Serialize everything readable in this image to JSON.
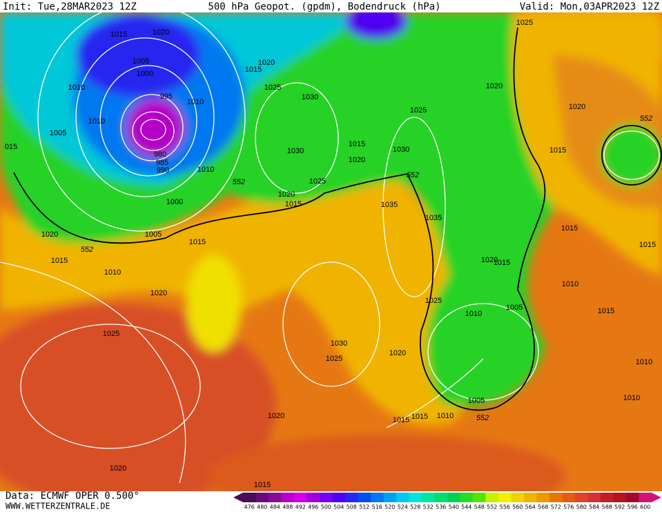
{
  "header": {
    "init": "Init: Tue,28MAR2023 12Z",
    "title": "500 hPa Geopot. (gpdm), Bodendruck (hPa)",
    "valid": "Valid: Mon,03APR2023 12Z"
  },
  "map": {
    "isobar_labels": [
      1015,
      1020,
      1005,
      1000,
      1010,
      995,
      1010,
      1010,
      1005,
      980,
      985,
      990,
      1010,
      1000,
      1005,
      1020,
      1015,
      1010,
      1015,
      1020,
      1025,
      1020,
      1020,
      1015,
      1015,
      1020,
      1025,
      1030,
      1030,
      1025,
      1020,
      1015,
      1015,
      1020,
      1025,
      1030,
      1035,
      1035,
      1020,
      1025,
      1020,
      1015,
      1015,
      1015,
      1010,
      1015,
      1010,
      1010,
      1020,
      1015,
      1025,
      1005,
      1010,
      1030,
      1025,
      1020,
      1005,
      1010,
      1015,
      1015,
      "015"
    ],
    "contour_552_labels": [
      552,
      552,
      552,
      552,
      552
    ]
  },
  "footer": {
    "source": "Data: ECMWF OPER 0.500°",
    "website": "WWW.WETTERZENTRALE.DE"
  },
  "colorbar": {
    "labels": [
      476,
      480,
      484,
      488,
      492,
      496,
      500,
      504,
      508,
      512,
      516,
      520,
      524,
      528,
      532,
      536,
      540,
      544,
      548,
      552,
      556,
      560,
      564,
      568,
      572,
      576,
      580,
      584,
      588,
      592,
      596,
      600
    ],
    "colors": [
      "#4b0a5a",
      "#6a0a7a",
      "#8c0a9a",
      "#b400c8",
      "#d200e6",
      "#a000e0",
      "#7800f0",
      "#5000f0",
      "#2828f0",
      "#0050f0",
      "#0078f0",
      "#00a0f0",
      "#00c8f0",
      "#00e6dc",
      "#00e6a0",
      "#00dc6e",
      "#00d250",
      "#28dc28",
      "#50e600",
      "#c8f000",
      "#f0f000",
      "#f0d200",
      "#f0b400",
      "#f09600",
      "#e67800",
      "#e65a14",
      "#dc4628",
      "#d23232",
      "#c31e28",
      "#b4141e",
      "#a00a32",
      "#d2147a"
    ]
  }
}
